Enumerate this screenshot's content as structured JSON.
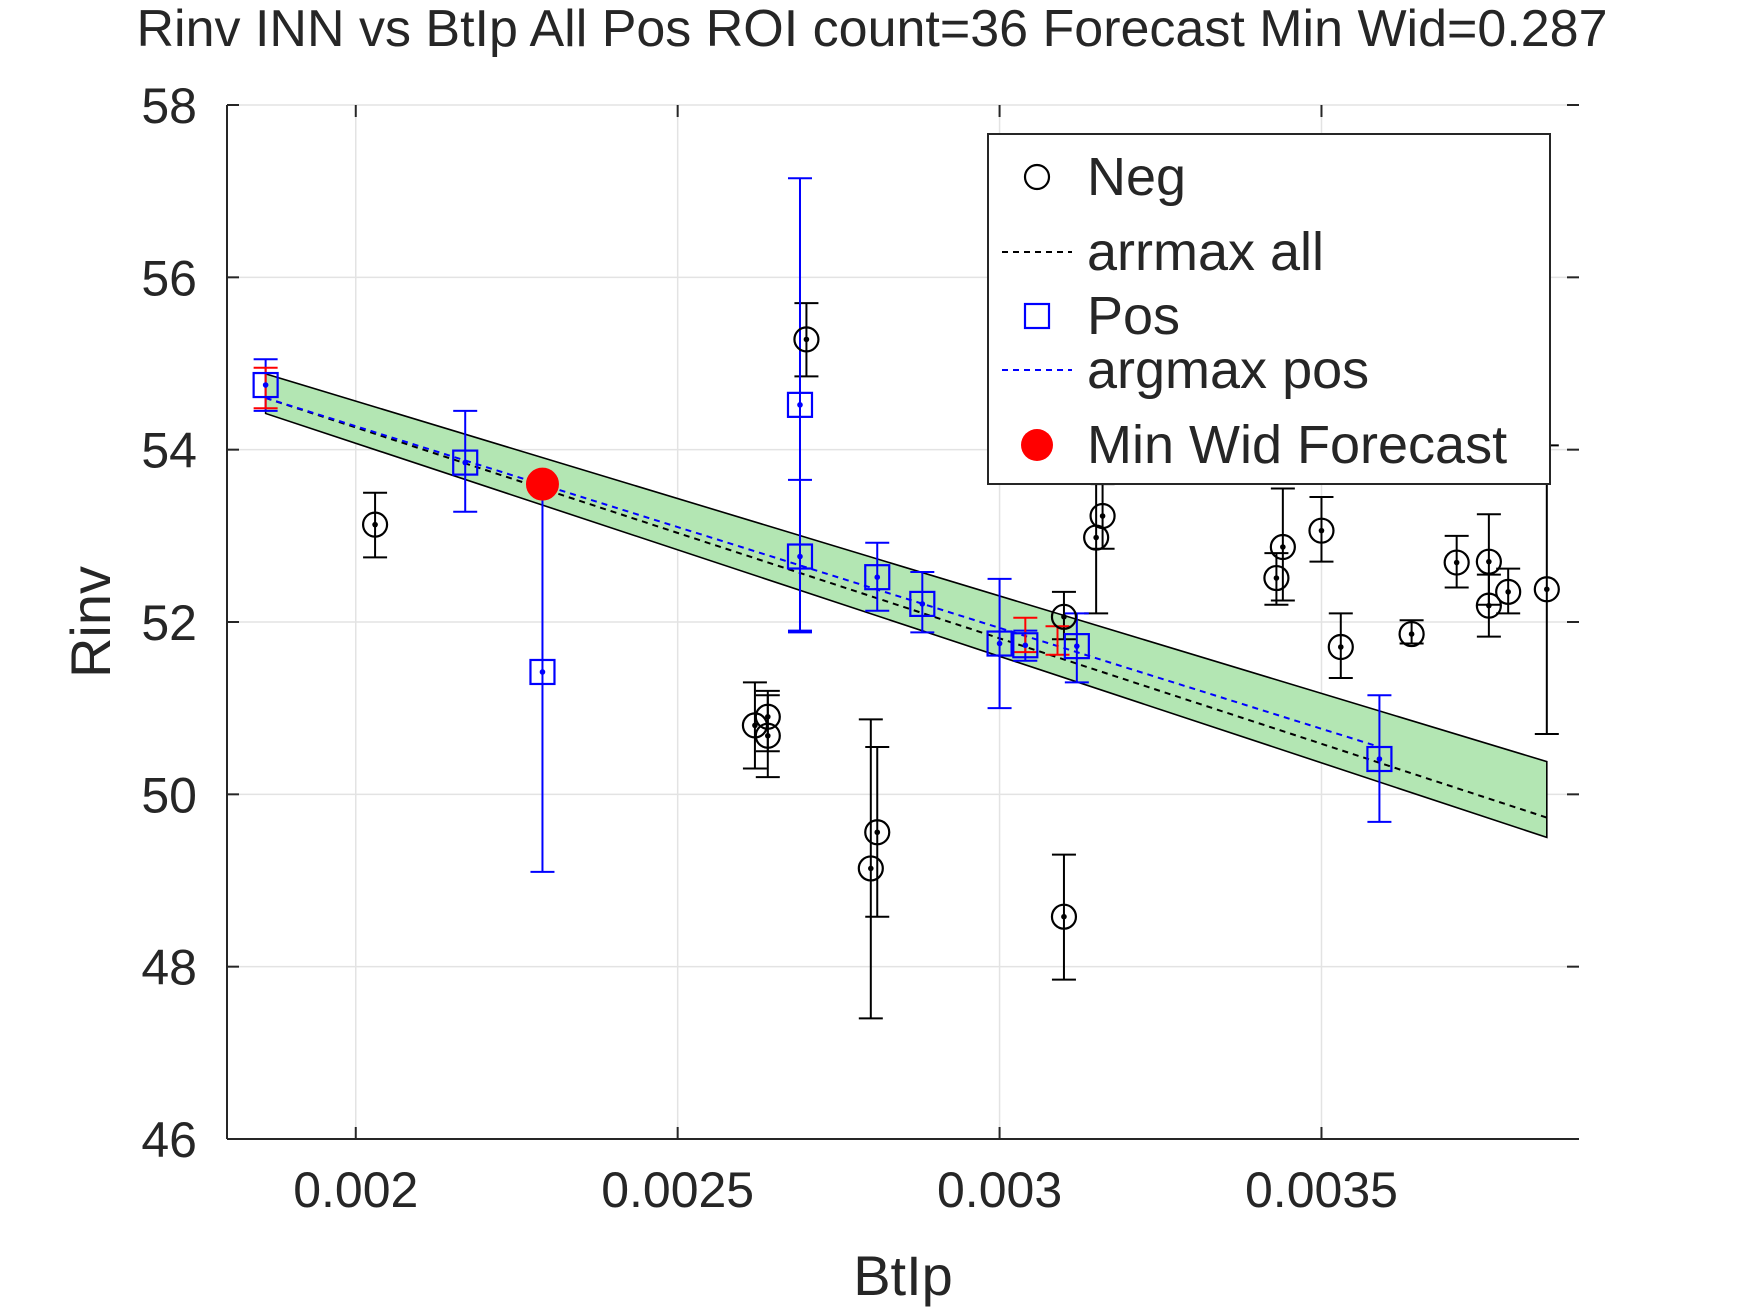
{
  "chart_data": {
    "type": "scatter",
    "title": "Rinv INN vs BtIp All Pos ROI count=36 Forecast Min Wid=0.287",
    "xlabel": "BtIp",
    "ylabel": "Rinv",
    "xlim": [
      0.0018,
      0.0039
    ],
    "ylim": [
      46,
      58
    ],
    "xticks": [
      0.002,
      0.0025,
      0.003,
      0.0035
    ],
    "xtick_labels": [
      "0.002",
      "0.0025",
      "0.003",
      "0.0035"
    ],
    "yticks": [
      46,
      48,
      50,
      52,
      54,
      56,
      58
    ],
    "ytick_labels": [
      "46",
      "48",
      "50",
      "52",
      "54",
      "56",
      "58"
    ],
    "grid": true,
    "legend_position": "top-right",
    "legend": [
      {
        "label": "Neg",
        "marker": "circle",
        "color": "#000000"
      },
      {
        "label": "arrmax all",
        "marker": "dashed-line",
        "color": "#000000"
      },
      {
        "label": "Pos",
        "marker": "square",
        "color": "#0000ff"
      },
      {
        "label": "argmax pos",
        "marker": "dashed-line",
        "color": "#0000ff"
      },
      {
        "label": "Min Wid Forecast",
        "marker": "filled-circle",
        "color": "#ff0000"
      }
    ],
    "series": [
      {
        "name": "Neg",
        "marker": "circle",
        "color": "#000000",
        "points": [
          {
            "x": 0.00203,
            "y": 53.13,
            "lo": 52.75,
            "hi": 53.5
          },
          {
            "x": 0.0027,
            "y": 55.28,
            "lo": 54.85,
            "hi": 55.7
          },
          {
            "x": 0.00262,
            "y": 50.8,
            "lo": 50.3,
            "hi": 51.3
          },
          {
            "x": 0.00264,
            "y": 50.9,
            "lo": 50.5,
            "hi": 51.2
          },
          {
            "x": 0.00264,
            "y": 50.68,
            "lo": 50.2,
            "hi": 51.15
          },
          {
            "x": 0.0028,
            "y": 49.14,
            "lo": 47.4,
            "hi": 50.87
          },
          {
            "x": 0.00281,
            "y": 49.56,
            "lo": 48.58,
            "hi": 50.55
          },
          {
            "x": 0.0031,
            "y": 48.58,
            "lo": 47.85,
            "hi": 49.3
          },
          {
            "x": 0.0031,
            "y": 52.06,
            "lo": 51.8,
            "hi": 52.35
          },
          {
            "x": 0.00315,
            "y": 52.98,
            "lo": 52.1,
            "hi": 55.6
          },
          {
            "x": 0.00316,
            "y": 53.23,
            "lo": 52.85,
            "hi": 53.6
          },
          {
            "x": 0.00343,
            "y": 52.51,
            "lo": 52.2,
            "hi": 52.8
          },
          {
            "x": 0.00344,
            "y": 52.87,
            "lo": 52.25,
            "hi": 53.55
          },
          {
            "x": 0.0035,
            "y": 53.06,
            "lo": 52.7,
            "hi": 53.45
          },
          {
            "x": 0.00353,
            "y": 51.71,
            "lo": 51.35,
            "hi": 52.1
          },
          {
            "x": 0.00364,
            "y": 51.86,
            "lo": 51.75,
            "hi": 52.02
          },
          {
            "x": 0.00371,
            "y": 52.69,
            "lo": 52.4,
            "hi": 53.0
          },
          {
            "x": 0.00376,
            "y": 52.7,
            "lo": 52.2,
            "hi": 53.25
          },
          {
            "x": 0.00376,
            "y": 52.19,
            "lo": 51.83,
            "hi": 52.55
          },
          {
            "x": 0.00379,
            "y": 52.35,
            "lo": 52.1,
            "hi": 52.62
          },
          {
            "x": 0.00385,
            "y": 52.38,
            "lo": 50.7,
            "hi": 54.05
          }
        ]
      },
      {
        "name": "Pos",
        "marker": "square",
        "color": "#0000ff",
        "points": [
          {
            "x": 0.00186,
            "y": 54.75,
            "lo": 54.45,
            "hi": 55.05
          },
          {
            "x": 0.00217,
            "y": 53.85,
            "lo": 53.28,
            "hi": 54.45
          },
          {
            "x": 0.00229,
            "y": 51.42,
            "lo": 49.1,
            "hi": 53.5
          },
          {
            "x": 0.00269,
            "y": 54.52,
            "lo": 51.9,
            "hi": 57.15
          },
          {
            "x": 0.00269,
            "y": 52.76,
            "lo": 51.88,
            "hi": 53.65
          },
          {
            "x": 0.00281,
            "y": 52.52,
            "lo": 52.13,
            "hi": 52.92
          },
          {
            "x": 0.00288,
            "y": 52.21,
            "lo": 51.88,
            "hi": 52.58
          },
          {
            "x": 0.003,
            "y": 51.75,
            "lo": 51.0,
            "hi": 52.5
          },
          {
            "x": 0.00304,
            "y": 51.73,
            "lo": 51.55,
            "hi": 51.9
          },
          {
            "x": 0.00312,
            "y": 51.72,
            "lo": 51.3,
            "hi": 52.1
          },
          {
            "x": 0.00359,
            "y": 50.41,
            "lo": 49.68,
            "hi": 51.15
          }
        ]
      },
      {
        "name": "Min Wid Forecast",
        "marker": "filled-circle",
        "color": "#ff0000",
        "points": [
          {
            "x": 0.00229,
            "y": 53.6
          }
        ]
      }
    ],
    "red_errorbars": [
      {
        "x": 0.00186,
        "y": 54.7,
        "lo": 54.48,
        "hi": 54.95
      },
      {
        "x": 0.00304,
        "y": 51.87,
        "lo": 51.65,
        "hi": 52.05
      },
      {
        "x": 0.00309,
        "y": 51.8,
        "lo": 51.62,
        "hi": 51.95
      }
    ],
    "lines": [
      {
        "name": "arrmax all",
        "style": "dashed",
        "color": "#000000",
        "x": [
          0.00186,
          0.00385
        ],
        "y": [
          54.6,
          49.73
        ]
      },
      {
        "name": "argmax pos",
        "style": "dashed",
        "color": "#0000ff",
        "x": [
          0.00186,
          0.00359
        ],
        "y": [
          54.6,
          50.55
        ]
      }
    ],
    "band": {
      "color": "#b3e6b3",
      "x": [
        0.00186,
        0.00385
      ],
      "upper": [
        54.88,
        50.38
      ],
      "lower": [
        54.42,
        49.5
      ]
    }
  }
}
